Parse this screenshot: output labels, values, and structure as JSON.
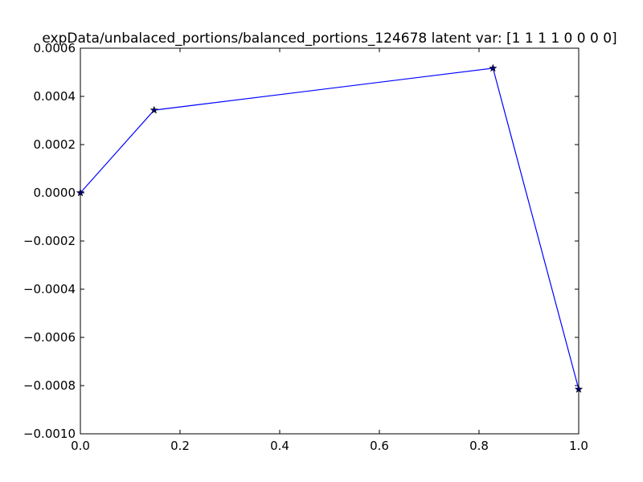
{
  "chart_data": {
    "type": "line",
    "title": "expData/unbalaced_portions/balanced_portions_124678 latent var: [1 1 1 1 0 0 0 0]",
    "xlabel": "",
    "ylabel": "",
    "xlim": [
      0.0,
      1.0
    ],
    "ylim": [
      -0.001,
      0.0006
    ],
    "x_ticks": [
      "0.0",
      "0.2",
      "0.4",
      "0.6",
      "0.8",
      "1.0"
    ],
    "x_tick_values": [
      0.0,
      0.2,
      0.4,
      0.6,
      0.8,
      1.0
    ],
    "y_ticks": [
      "−0.0010",
      "−0.0008",
      "−0.0006",
      "−0.0004",
      "−0.0002",
      "0.0000",
      "0.0002",
      "0.0004",
      "0.0006"
    ],
    "y_tick_values": [
      -0.001,
      -0.0008,
      -0.0006,
      -0.0004,
      -0.0002,
      0.0,
      0.0002,
      0.0004,
      0.0006
    ],
    "grid": false,
    "series": [
      {
        "color": "#0000ff",
        "marker": "star",
        "x": [
          0.0,
          0.148,
          0.828,
          1.0
        ],
        "y": [
          0.0,
          0.000343,
          0.000517,
          -0.000815
        ]
      }
    ]
  }
}
